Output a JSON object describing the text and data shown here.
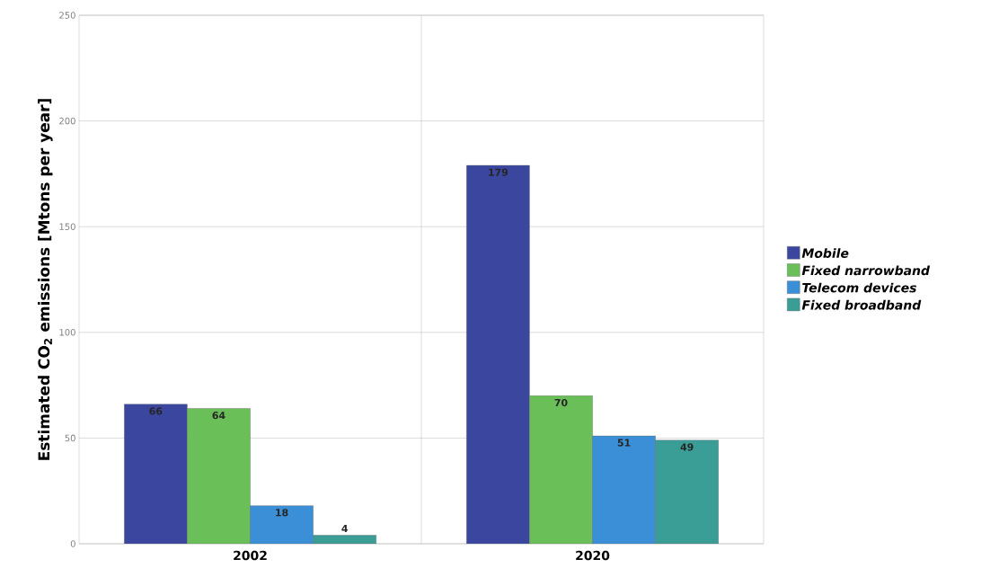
{
  "chart_data": {
    "type": "bar",
    "ylabel": "Estimated CO$_{2}$ emissions [Mtons per year]",
    "categories": [
      "2002",
      "2020"
    ],
    "series": [
      {
        "name": "Mobile",
        "color": "#3b479f",
        "values": [
          66,
          179
        ]
      },
      {
        "name": "Fixed narrowband",
        "color": "#6bbf59",
        "values": [
          64,
          70
        ]
      },
      {
        "name": "Telecom devices",
        "color": "#3a8fd6",
        "values": [
          18,
          51
        ]
      },
      {
        "name": "Fixed broadband",
        "color": "#3a9d96",
        "values": [
          4,
          49
        ]
      }
    ],
    "ylim": [
      0,
      250
    ],
    "yticks": [
      0,
      50,
      100,
      150,
      200,
      250
    ],
    "grid": true,
    "legend": "right",
    "data_labels": true
  }
}
